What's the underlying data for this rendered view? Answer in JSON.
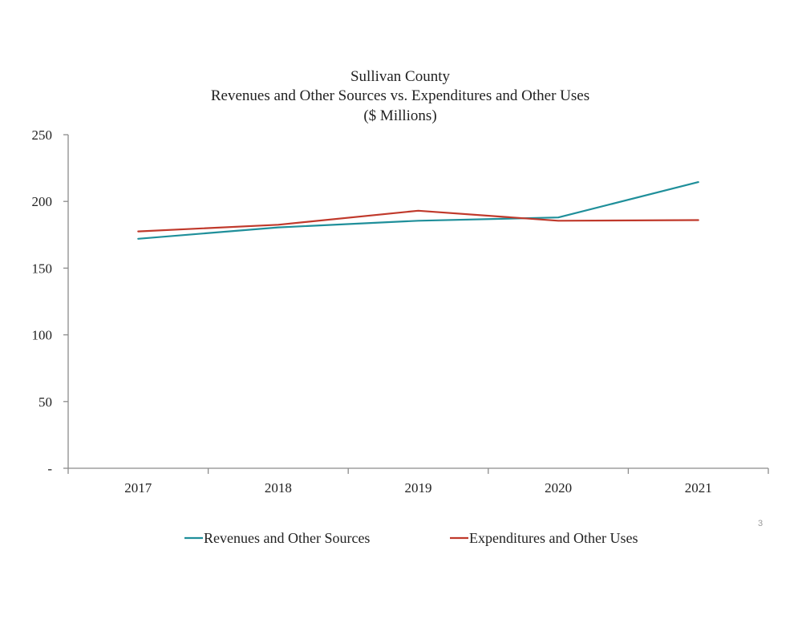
{
  "page_number": "3",
  "chart_data": {
    "type": "line",
    "title_lines": [
      "Sullivan County",
      "Revenues and Other Sources vs. Expenditures and Other Uses",
      "($ Millions)"
    ],
    "xlabel": "",
    "ylabel": "",
    "categories": [
      "2017",
      "2018",
      "2019",
      "2020",
      "2021"
    ],
    "y_ticks": [
      {
        "value": 0,
        "label": "-"
      },
      {
        "value": 50,
        "label": "50"
      },
      {
        "value": 100,
        "label": "100"
      },
      {
        "value": 150,
        "label": "150"
      },
      {
        "value": 200,
        "label": "200"
      },
      {
        "value": 250,
        "label": "250"
      }
    ],
    "ylim": [
      0,
      250
    ],
    "grid": false,
    "legend_position": "bottom",
    "series": [
      {
        "name": "Revenues and Other Sources",
        "color": "#1f8f9a",
        "values": [
          172,
          180.5,
          185.5,
          188,
          214.5
        ]
      },
      {
        "name": "Expenditures and Other Uses",
        "color": "#c0392b",
        "values": [
          177.5,
          182.5,
          193,
          185.5,
          186
        ]
      }
    ]
  }
}
